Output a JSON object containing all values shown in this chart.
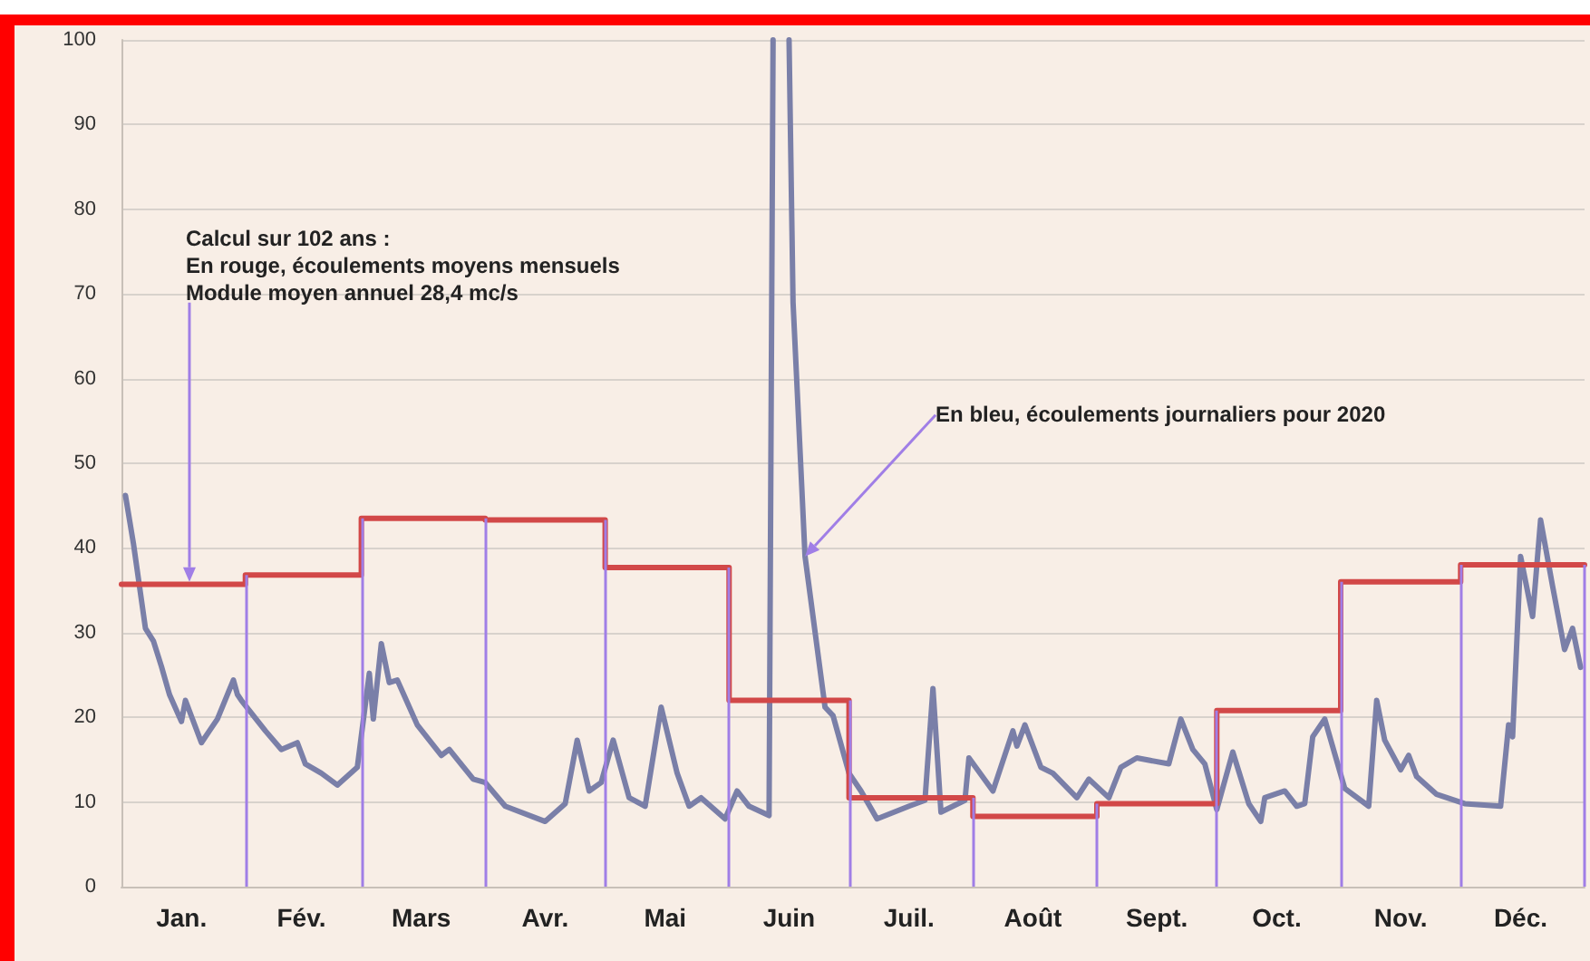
{
  "chart_data": {
    "type": "line",
    "xlim": [
      "2020-01-01",
      "2021-01-01"
    ],
    "xticks": [
      {
        "value": "2020-01-16",
        "label": "Jan."
      },
      {
        "value": "2020-02-15",
        "label": "Fév."
      },
      {
        "value": "2020-03-16",
        "label": "Mars"
      },
      {
        "value": "2020-04-16",
        "label": "Avr."
      },
      {
        "value": "2020-05-16",
        "label": "Mai"
      },
      {
        "value": "2020-06-16",
        "label": "Juin"
      },
      {
        "value": "2020-07-16",
        "label": "Juil."
      },
      {
        "value": "2020-08-16",
        "label": "Août"
      },
      {
        "value": "2020-09-16",
        "label": "Sept."
      },
      {
        "value": "2020-10-16",
        "label": "Oct."
      },
      {
        "value": "2020-11-16",
        "label": "Nov."
      },
      {
        "value": "2020-12-16",
        "label": "Déc."
      }
    ],
    "ylim": [
      0,
      100
    ],
    "yticks": [
      0,
      10,
      20,
      30,
      40,
      50,
      60,
      70,
      80,
      90,
      100
    ],
    "grid": "y",
    "marker": "none",
    "line_style": "solid",
    "series": [
      {
        "color": "#7a7fa8",
        "x": [
          "2020-01-02",
          "2020-01-04",
          "2020-01-07",
          "2020-01-09",
          "2020-01-11",
          "2020-01-13",
          "2020-01-16",
          "2020-01-17",
          "2020-01-21",
          "2020-01-23",
          "2020-01-25",
          "2020-01-29",
          "2020-01-30",
          "2020-01-31",
          "2020-02-06",
          "2020-02-10",
          "2020-02-14",
          "2020-02-16",
          "2020-02-20",
          "2020-02-24",
          "2020-02-29",
          "2020-03-03",
          "2020-03-04",
          "2020-03-06",
          "2020-03-08",
          "2020-03-10",
          "2020-03-15",
          "2020-03-21",
          "2020-03-23",
          "2020-03-29",
          "2020-04-01",
          "2020-04-06",
          "2020-04-16",
          "2020-04-21",
          "2020-04-24",
          "2020-04-27",
          "2020-04-30",
          "2020-05-03",
          "2020-05-07",
          "2020-05-11",
          "2020-05-15",
          "2020-05-19",
          "2020-05-22",
          "2020-05-25",
          "2020-05-31",
          "2020-06-03",
          "2020-06-06",
          "2020-06-11",
          "2020-06-12",
          "2020-06-14",
          "2020-06-16",
          "2020-06-17",
          "2020-06-20",
          "2020-06-25",
          "2020-06-27",
          "2020-07-01",
          "2020-07-04",
          "2020-07-08",
          "2020-07-16",
          "2020-07-20",
          "2020-07-22",
          "2020-07-24",
          "2020-07-30",
          "2020-07-31",
          "2020-08-06",
          "2020-08-11",
          "2020-08-12",
          "2020-08-14",
          "2020-08-18",
          "2020-08-21",
          "2020-08-27",
          "2020-08-30",
          "2020-09-04",
          "2020-09-07",
          "2020-09-11",
          "2020-09-19",
          "2020-09-22",
          "2020-09-25",
          "2020-09-28",
          "2020-10-01",
          "2020-10-05",
          "2020-10-09",
          "2020-10-12",
          "2020-10-13",
          "2020-10-18",
          "2020-10-21",
          "2020-10-23",
          "2020-10-25",
          "2020-10-28",
          "2020-11-02",
          "2020-11-08",
          "2020-11-10",
          "2020-11-12",
          "2020-11-16",
          "2020-11-18",
          "2020-11-20",
          "2020-11-25",
          "2020-12-02",
          "2020-12-11",
          "2020-12-13",
          "2020-12-14",
          "2020-12-16",
          "2020-12-19",
          "2020-12-21",
          "2020-12-24",
          "2020-12-27",
          "2020-12-29",
          "2020-12-31"
        ],
        "values": [
          46.2,
          40.5,
          30.5,
          29,
          26,
          22.7,
          19.5,
          22,
          17,
          18.4,
          19.8,
          24.4,
          22.7,
          22,
          18.4,
          16.2,
          17,
          14.5,
          13.4,
          12,
          14.1,
          25.2,
          19.8,
          28.7,
          24.1,
          24.4,
          19.1,
          15.5,
          16.2,
          12.7,
          12.3,
          9.5,
          7.7,
          9.8,
          17.3,
          11.3,
          12.3,
          17.3,
          10.5,
          9.5,
          21.2,
          13.4,
          9.5,
          10.5,
          8,
          11.3,
          9.5,
          8.4,
          100,
          null,
          100,
          69,
          39,
          21.2,
          20.2,
          13.4,
          11.3,
          8,
          9.5,
          10.2,
          23.4,
          8.8,
          10.2,
          15.2,
          11.3,
          18.4,
          16.6,
          19.1,
          14.1,
          13.4,
          10.5,
          12.7,
          10.5,
          14.1,
          15.2,
          14.5,
          19.8,
          16.2,
          14.5,
          9.1,
          15.9,
          9.8,
          7.7,
          10.5,
          11.3,
          9.5,
          9.8,
          17.7,
          19.8,
          11.6,
          9.5,
          22,
          17.3,
          13.8,
          15.5,
          13,
          10.9,
          9.8,
          9.5,
          19.1,
          17.7,
          39,
          31.9,
          43.3,
          35.5,
          28,
          30.5,
          25.9
        ]
      },
      {
        "type": "step",
        "color": "#d24848",
        "x": [
          "2020-01-01",
          "2020-02-01",
          "2020-03-01",
          "2020-04-01",
          "2020-05-01",
          "2020-06-01",
          "2020-07-01",
          "2020-08-01",
          "2020-09-01",
          "2020-10-01",
          "2020-11-01",
          "2020-12-01",
          "2021-01-01"
        ],
        "values": [
          35.7,
          36.8,
          43.5,
          43.3,
          37.7,
          22.0,
          10.5,
          8.3,
          9.8,
          20.8,
          36.0,
          38.0,
          38.0
        ]
      }
    ],
    "ref_lines": [
      {
        "axis": "x",
        "value": "2020-02-01",
        "color": "#a07ee6"
      },
      {
        "axis": "x",
        "value": "2020-03-01",
        "color": "#a07ee6"
      },
      {
        "axis": "x",
        "value": "2020-04-01",
        "color": "#a07ee6"
      },
      {
        "axis": "x",
        "value": "2020-05-01",
        "color": "#a07ee6"
      },
      {
        "axis": "x",
        "value": "2020-06-01",
        "color": "#a07ee6"
      },
      {
        "axis": "x",
        "value": "2020-07-01",
        "color": "#a07ee6"
      },
      {
        "axis": "x",
        "value": "2020-08-01",
        "color": "#a07ee6"
      },
      {
        "axis": "x",
        "value": "2020-09-01",
        "color": "#a07ee6"
      },
      {
        "axis": "x",
        "value": "2020-10-01",
        "color": "#a07ee6"
      },
      {
        "axis": "x",
        "value": "2020-11-01",
        "color": "#a07ee6"
      },
      {
        "axis": "x",
        "value": "2020-12-01",
        "color": "#a07ee6"
      },
      {
        "axis": "x",
        "value": "2021-01-01",
        "color": "#a07ee6"
      }
    ],
    "annotations": [
      {
        "text": "Calcul sur 102 ans :\nEn rouge, écoulements moyens mensuels\nModule moyen annuel 28,4 mc/s",
        "x": "2020-01-18",
        "y": 36
      },
      {
        "text": "En bleu, écoulements journaliers pour 2020",
        "x": "2020-06-20",
        "y": 39
      }
    ]
  }
}
